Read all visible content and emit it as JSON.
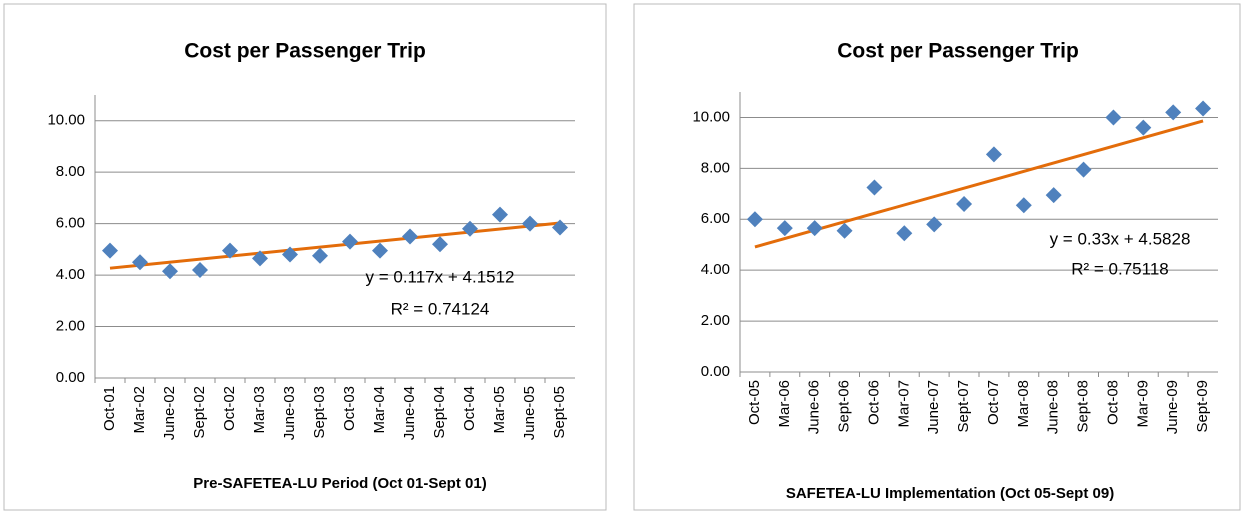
{
  "chart_data": [
    {
      "type": "scatter",
      "title": "Cost per Passenger  Trip",
      "x_label": "Pre-SAFETEA-LU  Period  (Oct 01-Sept 01)",
      "categories": [
        "Oct-01",
        "Mar-02",
        "June-02",
        "Sept-02",
        "Oct-02",
        "Mar-03",
        "June-03",
        "Sept-03",
        "Oct-03",
        "Mar-04",
        "June-04",
        "Sept-04",
        "Oct-04",
        "Mar-05",
        "June-05",
        "Sept-05"
      ],
      "series": [
        {
          "name": null,
          "color": "#4f81bd",
          "values": [
            4.95,
            4.5,
            4.15,
            4.2,
            4.95,
            4.65,
            4.8,
            4.75,
            5.3,
            4.95,
            5.5,
            5.2,
            5.8,
            6.35,
            6.0,
            5.85
          ]
        }
      ],
      "trendline": {
        "slope": 0.117,
        "intercept": 4.1512,
        "color": "#e36c0a",
        "equation": "y = 0.117x + 4.1512",
        "r2_label": "R² = 0.74124"
      },
      "ylim": [
        0,
        11
      ],
      "yticks": [
        {
          "value": 0,
          "label": "0.00"
        },
        {
          "value": 2,
          "label": "2.00"
        },
        {
          "value": 4,
          "label": "4.00"
        },
        {
          "value": 6,
          "label": "6.00"
        },
        {
          "value": 8,
          "label": "8.00"
        },
        {
          "value": 10,
          "label": "10.00"
        }
      ],
      "grid": true
    },
    {
      "type": "scatter",
      "title": "Cost per Passenger  Trip",
      "x_label": "SAFETEA-LU Implementation (Oct 05-Sept 09)",
      "categories": [
        "Oct-05",
        "Mar-06",
        "June-06",
        "Sept-06",
        "Oct-06",
        "Mar-07",
        "June-07",
        "Sept-07",
        "Oct-07",
        "Mar-08",
        "June-08",
        "Sept-08",
        "Oct-08",
        "Mar-09",
        "June-09",
        "Sept-09"
      ],
      "series": [
        {
          "name": null,
          "color": "#4f81bd",
          "values": [
            6.0,
            5.65,
            5.65,
            5.55,
            7.25,
            5.45,
            5.8,
            6.6,
            8.55,
            6.55,
            6.95,
            7.95,
            10.0,
            9.6,
            10.2,
            10.35
          ]
        }
      ],
      "trendline": {
        "slope": 0.33,
        "intercept": 4.5828,
        "color": "#e36c0a",
        "equation": "y = 0.33x + 4.5828",
        "r2_label": "R² = 0.75118"
      },
      "ylim": [
        0,
        11
      ],
      "yticks": [
        {
          "value": 0,
          "label": "0.00"
        },
        {
          "value": 2,
          "label": "2.00"
        },
        {
          "value": 4,
          "label": "4.00"
        },
        {
          "value": 6,
          "label": "6.00"
        },
        {
          "value": 8,
          "label": "8.00"
        },
        {
          "value": 10,
          "label": "10.00"
        }
      ],
      "grid": true
    }
  ]
}
